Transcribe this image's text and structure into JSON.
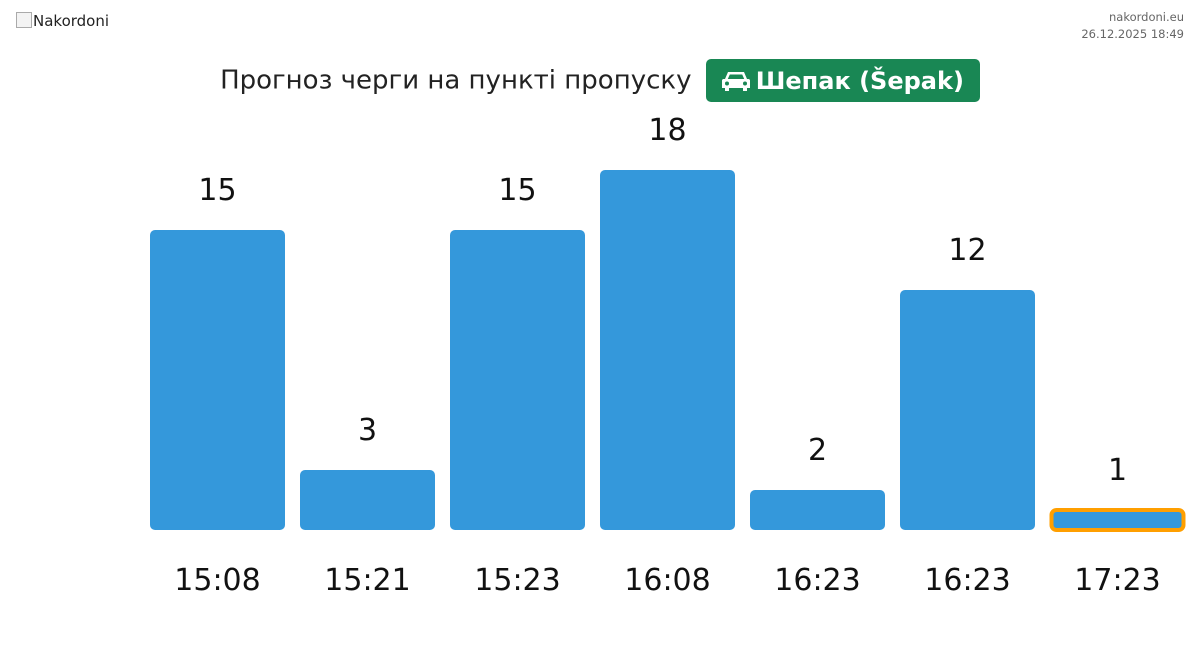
{
  "header": {
    "logo_alt": "Nakordoni",
    "site": "nakordoni.eu",
    "datetime": "26.12.2025 18:49"
  },
  "title": {
    "text": "Прогноз черги на пункті пропуску",
    "badge_label": "Шепак (Šepak)",
    "badge_icon": "car-icon",
    "badge_color": "#198754"
  },
  "chart_data": {
    "type": "bar",
    "categories": [
      "15:08",
      "15:21",
      "15:23",
      "16:08",
      "16:23",
      "16:23",
      "17:23"
    ],
    "values": [
      15,
      3,
      15,
      18,
      2,
      12,
      1
    ],
    "data_labels": [
      "15",
      "3",
      "15",
      "18",
      "2",
      "12",
      "1"
    ],
    "highlighted_index": 6,
    "bar_color": "#3498db",
    "highlight_border_color": "#ff9f00",
    "grid": false,
    "legend": "none"
  }
}
